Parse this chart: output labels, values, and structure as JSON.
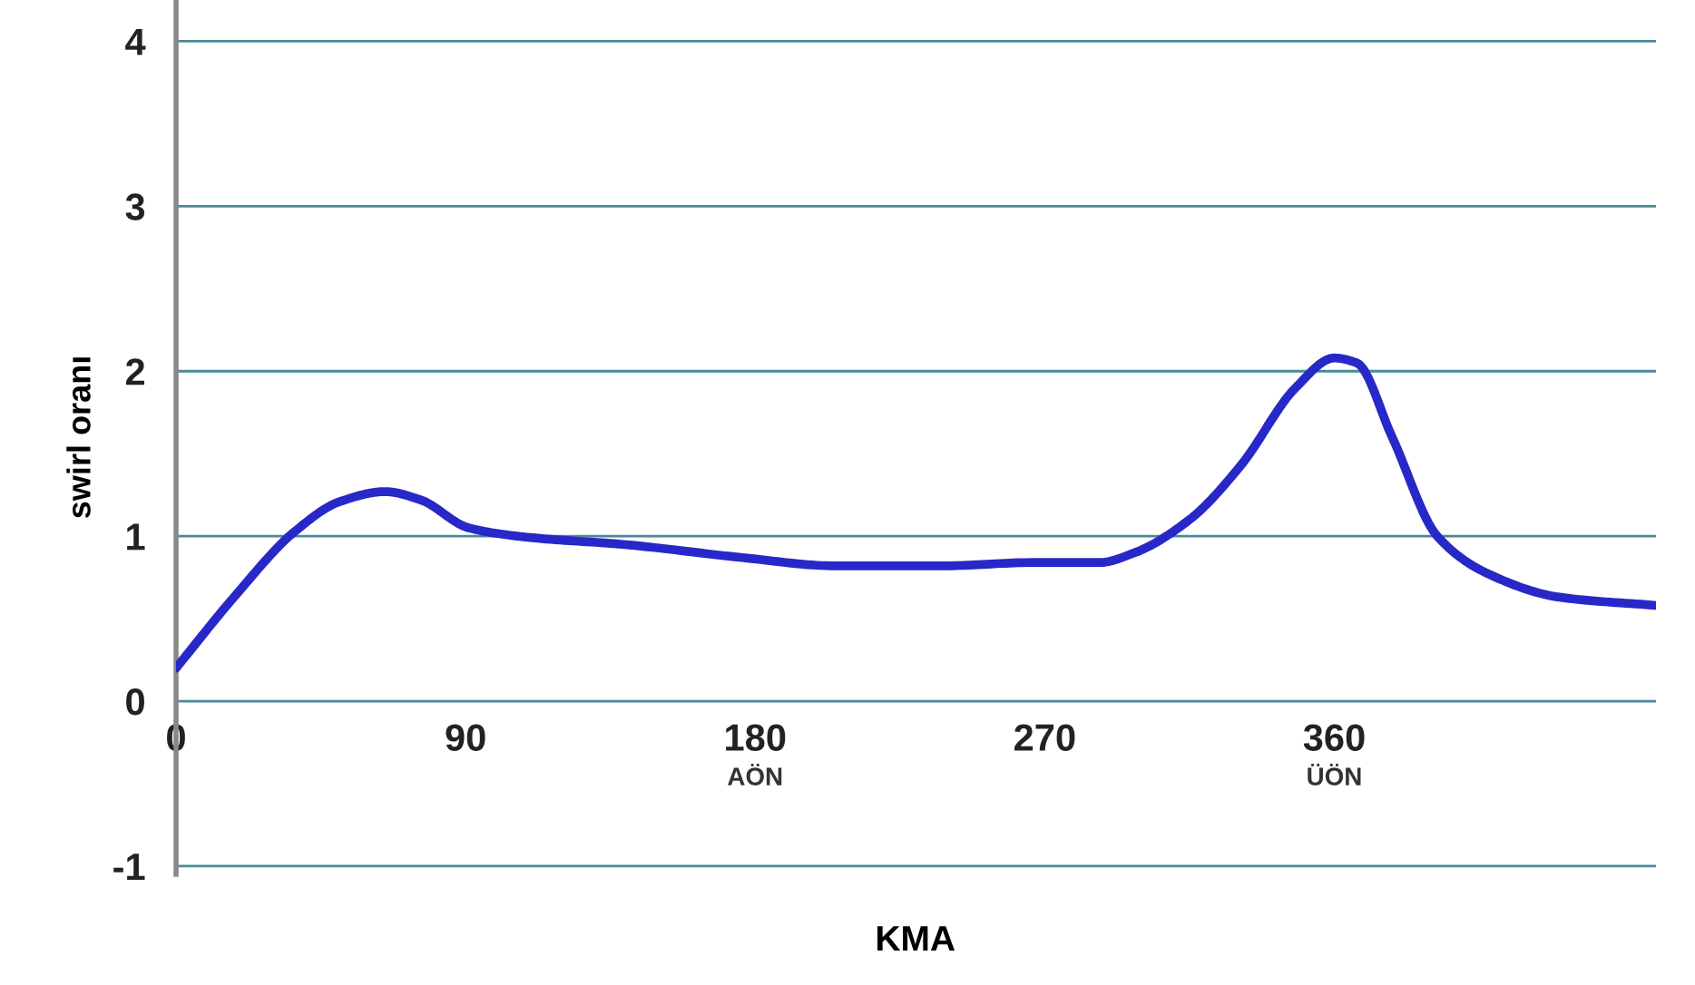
{
  "chart_data": {
    "type": "line",
    "xlabel": "KMA",
    "ylabel": "swirl oranı",
    "x": [
      0,
      18,
      37,
      51,
      65,
      76,
      91,
      111,
      139,
      176,
      205,
      238,
      266,
      287,
      298,
      315,
      331,
      348,
      360,
      367,
      378,
      392,
      408,
      430,
      460
    ],
    "series": [
      {
        "color": "#2828c8",
        "values": [
          0.2,
          0.63,
          1.03,
          1.21,
          1.27,
          1.22,
          1.05,
          0.99,
          0.95,
          0.87,
          0.82,
          0.82,
          0.84,
          0.84,
          0.9,
          1.1,
          1.43,
          1.9,
          2.08,
          2.05,
          1.6,
          1.0,
          0.77,
          0.63,
          0.58
        ]
      }
    ],
    "xlim": [
      0,
      460
    ],
    "xticks": [
      0,
      90,
      180,
      270,
      360
    ],
    "ylim": [
      -1.05,
      4.25
    ],
    "yticks": [
      -1,
      0,
      1,
      2,
      3,
      4
    ],
    "grid": "y",
    "marker": "none",
    "line_style": "solid",
    "annotations": [
      "AÖN",
      "ÜÖN"
    ]
  }
}
